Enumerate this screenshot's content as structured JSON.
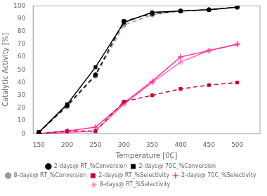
{
  "chart_data": {
    "type": "line",
    "xlabel": "Temperature [0C]",
    "ylabel": "Catalytic Activity [%]",
    "x": [
      150,
      200,
      250,
      300,
      350,
      400,
      450,
      500
    ],
    "series": [
      {
        "name": "2-days@ RT_%Conversion",
        "color": "black",
        "line_style": "dashed",
        "marker": "circle",
        "values": [
          1,
          22,
          46,
          88,
          94,
          96,
          97,
          99
        ]
      },
      {
        "name": "2-days@ 70C_%Conversion",
        "color": "black",
        "line_style": "solid",
        "marker": "square",
        "values": [
          1,
          23,
          52,
          87,
          95,
          96,
          97,
          99
        ]
      },
      {
        "name": "8-days@ RT_%Conversion",
        "color": "#999999",
        "line_style": "dashed",
        "marker": "circle",
        "values": [
          1,
          21,
          45,
          85,
          93,
          96,
          97,
          99
        ]
      },
      {
        "name": "2-days@ RT_%Selectivity",
        "color": "#cc0033",
        "line_style": "dashed",
        "marker": "square",
        "values": [
          0,
          2,
          2,
          25,
          30,
          35,
          38,
          40
        ]
      },
      {
        "name": "2-days@ 70C_%Selectivity",
        "color": "#ff3399",
        "line_style": "solid",
        "marker": "plus",
        "values": [
          0,
          2,
          5,
          24,
          41,
          60,
          65,
          70
        ]
      },
      {
        "name": "8-days@ RT_%Selectivity",
        "color": "#ff66bb",
        "line_style": "solid",
        "marker": "star",
        "values": [
          0,
          1,
          2,
          23,
          40,
          56,
          65,
          70
        ]
      }
    ],
    "xlim": [
      140,
      540
    ],
    "ylim": [
      0,
      100
    ],
    "xticks": [
      150,
      200,
      250,
      300,
      350,
      400,
      450,
      500
    ],
    "yticks": [
      0,
      10,
      20,
      30,
      40,
      50,
      60,
      70,
      80,
      90,
      100
    ],
    "grid": false,
    "legend": "bottom"
  }
}
